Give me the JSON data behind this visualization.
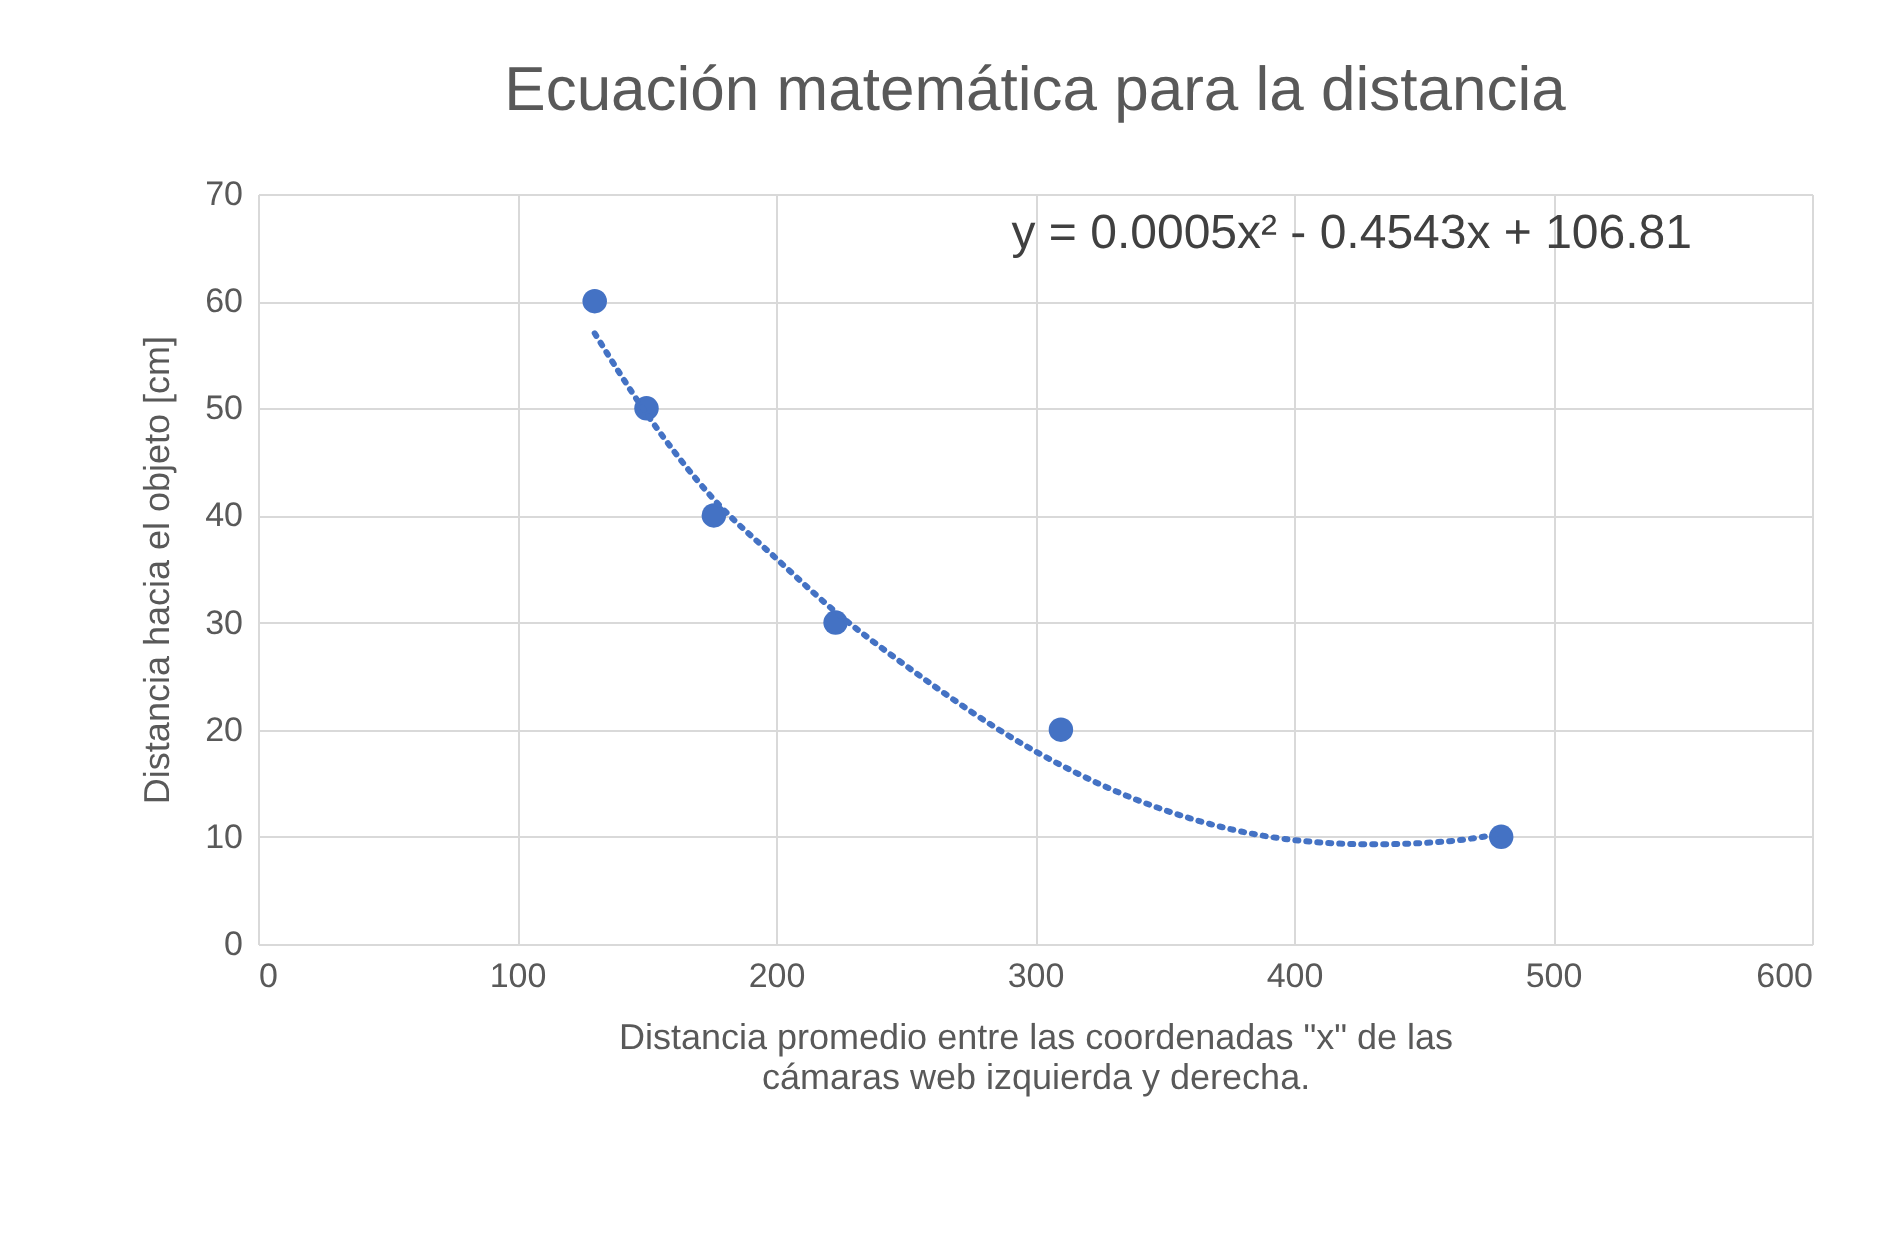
{
  "chart_data": {
    "type": "scatter",
    "title": "Ecuación matemática para la distancia",
    "xlabel": "Distancia promedio entre las coordenadas \"x\" de las cámaras web izquierda y derecha.",
    "ylabel": "Distancia hacia el objeto [cm]",
    "annotations": [
      "y = 0.0005x² - 0.4543x + 106.81"
    ],
    "xlim": [
      0,
      600
    ],
    "xticks": [
      0,
      100,
      200,
      300,
      400,
      500,
      600
    ],
    "ylim": [
      0,
      70
    ],
    "yticks": [
      0,
      10,
      20,
      30,
      40,
      50,
      60,
      70
    ],
    "grid": true,
    "marker": "circle",
    "series": [
      {
        "color": "#4472c4",
        "x": [
          130,
          150,
          176,
          223,
          310,
          480
        ],
        "values": [
          60,
          50,
          40,
          30,
          20,
          10
        ]
      },
      {
        "type": "line",
        "color": "#4472c4",
        "line_style": "dotted",
        "marker": "none",
        "x": [
          130,
          150,
          176,
          200,
          223,
          250,
          300,
          350,
          400,
          430,
          460,
          480
        ],
        "values": [
          57,
          49.5,
          41.5,
          36,
          31,
          26,
          18,
          12.5,
          9.7,
          9.3,
          9.6,
          10.3
        ]
      }
    ]
  }
}
